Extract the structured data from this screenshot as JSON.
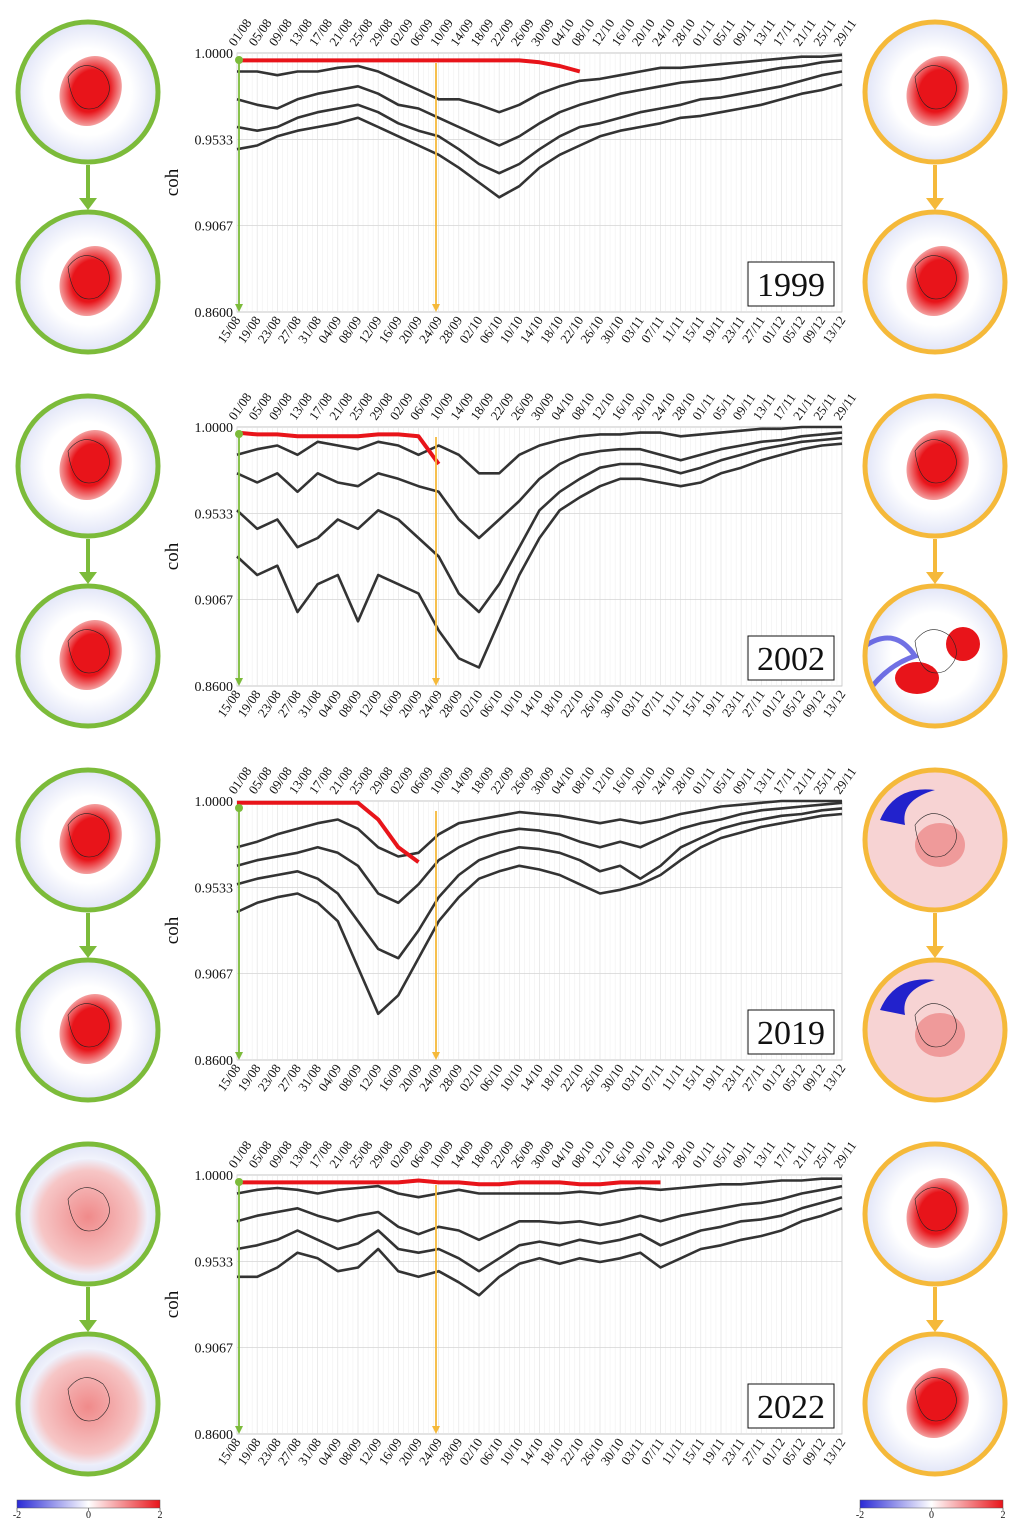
{
  "chart_data": [
    {
      "type": "line",
      "label": "1999",
      "ylabel": "coh",
      "ylim": [
        0.86,
        1.0
      ],
      "yticks": [
        {
          "value": 0.86,
          "label": "0.8600"
        },
        {
          "value": 0.9067,
          "label": "0.9067"
        },
        {
          "value": 0.9533,
          "label": "0.9533"
        },
        {
          "value": 1.0,
          "label": "1.0000"
        }
      ],
      "grid": true,
      "x": [
        "15/08",
        "19/08",
        "23/08",
        "27/08",
        "31/08",
        "04/09",
        "08/09",
        "12/09",
        "16/09",
        "20/09",
        "24/09",
        "28/09",
        "02/10",
        "06/10",
        "10/10",
        "14/10",
        "18/10",
        "22/10",
        "26/10",
        "30/10",
        "03/11",
        "07/11",
        "11/11",
        "15/11",
        "19/11",
        "23/11",
        "27/11",
        "01/12",
        "05/12",
        "09/12",
        "13/12"
      ],
      "x_top": [
        "01/08",
        "05/08",
        "09/08",
        "13/08",
        "17/08",
        "21/08",
        "25/08",
        "29/08",
        "02/09",
        "06/09",
        "10/09",
        "14/09",
        "18/09",
        "22/09",
        "26/09",
        "30/09",
        "04/10",
        "08/10",
        "12/10",
        "16/10",
        "20/10",
        "24/10",
        "28/10",
        "01/11",
        "05/11",
        "09/11",
        "13/11",
        "17/11",
        "21/11",
        "25/11",
        "29/11"
      ],
      "series": [
        {
          "color": "#333333",
          "values": [
            0.99,
            0.99,
            0.988,
            0.99,
            0.99,
            0.992,
            0.993,
            0.99,
            0.985,
            0.98,
            0.975,
            0.975,
            0.972,
            0.968,
            0.972,
            0.978,
            0.982,
            0.985,
            0.986,
            0.988,
            0.99,
            0.992,
            0.992,
            0.993,
            0.994,
            0.995,
            0.996,
            0.997,
            0.998,
            0.998,
            0.999
          ]
        },
        {
          "color": "#333333",
          "values": [
            0.975,
            0.972,
            0.97,
            0.975,
            0.978,
            0.98,
            0.982,
            0.978,
            0.972,
            0.97,
            0.965,
            0.96,
            0.955,
            0.95,
            0.955,
            0.962,
            0.968,
            0.972,
            0.975,
            0.978,
            0.98,
            0.982,
            0.984,
            0.985,
            0.986,
            0.988,
            0.99,
            0.992,
            0.993,
            0.995,
            0.996
          ]
        },
        {
          "color": "#333333",
          "values": [
            0.96,
            0.958,
            0.96,
            0.965,
            0.968,
            0.97,
            0.972,
            0.968,
            0.962,
            0.958,
            0.955,
            0.948,
            0.94,
            0.935,
            0.94,
            0.948,
            0.955,
            0.96,
            0.962,
            0.965,
            0.968,
            0.97,
            0.972,
            0.975,
            0.976,
            0.978,
            0.98,
            0.982,
            0.985,
            0.988,
            0.99
          ]
        },
        {
          "color": "#333333",
          "values": [
            0.948,
            0.95,
            0.955,
            0.958,
            0.96,
            0.962,
            0.965,
            0.96,
            0.955,
            0.95,
            0.945,
            0.938,
            0.93,
            0.922,
            0.928,
            0.938,
            0.945,
            0.95,
            0.955,
            0.958,
            0.96,
            0.962,
            0.965,
            0.966,
            0.968,
            0.97,
            0.972,
            0.975,
            0.978,
            0.98,
            0.983
          ]
        },
        {
          "color": "#e8141a",
          "values": [
            0.996,
            0.996,
            0.996,
            0.996,
            0.996,
            0.996,
            0.996,
            0.996,
            0.996,
            0.996,
            0.996,
            0.996,
            0.996,
            0.996,
            0.996,
            0.995,
            0.993,
            0.99,
            null,
            null,
            null,
            null,
            null,
            null,
            null,
            null,
            null,
            null,
            null,
            null,
            null
          ]
        }
      ]
    },
    {
      "type": "line",
      "label": "2002",
      "ylabel": "coh",
      "ylim": [
        0.86,
        1.0
      ],
      "yticks": [
        {
          "value": 0.86,
          "label": "0.8600"
        },
        {
          "value": 0.9067,
          "label": "0.9067"
        },
        {
          "value": 0.9533,
          "label": "0.9533"
        },
        {
          "value": 1.0,
          "label": "1.0000"
        }
      ],
      "grid": true,
      "x": [
        "15/08",
        "19/08",
        "23/08",
        "27/08",
        "31/08",
        "04/09",
        "08/09",
        "12/09",
        "16/09",
        "20/09",
        "24/09",
        "28/09",
        "02/10",
        "06/10",
        "10/10",
        "14/10",
        "18/10",
        "22/10",
        "26/10",
        "30/10",
        "03/11",
        "07/11",
        "11/11",
        "15/11",
        "19/11",
        "23/11",
        "27/11",
        "01/12",
        "05/12",
        "09/12",
        "13/12"
      ],
      "x_top": [
        "01/08",
        "05/08",
        "09/08",
        "13/08",
        "17/08",
        "21/08",
        "25/08",
        "29/08",
        "02/09",
        "06/09",
        "10/09",
        "14/09",
        "18/09",
        "22/09",
        "26/09",
        "30/09",
        "04/10",
        "08/10",
        "12/10",
        "16/10",
        "20/10",
        "24/10",
        "28/10",
        "01/11",
        "05/11",
        "09/11",
        "13/11",
        "17/11",
        "21/11",
        "25/11",
        "29/11"
      ],
      "series": [
        {
          "color": "#333333",
          "values": [
            0.985,
            0.988,
            0.99,
            0.985,
            0.992,
            0.99,
            0.988,
            0.992,
            0.99,
            0.985,
            0.99,
            0.985,
            0.975,
            0.975,
            0.985,
            0.99,
            0.993,
            0.995,
            0.996,
            0.996,
            0.997,
            0.997,
            0.995,
            0.996,
            0.997,
            0.998,
            0.999,
            0.999,
            1.0,
            1.0,
            1.0
          ]
        },
        {
          "color": "#333333",
          "values": [
            0.975,
            0.97,
            0.975,
            0.965,
            0.975,
            0.97,
            0.968,
            0.975,
            0.972,
            0.968,
            0.965,
            0.95,
            0.94,
            0.95,
            0.96,
            0.972,
            0.98,
            0.985,
            0.987,
            0.988,
            0.988,
            0.985,
            0.982,
            0.985,
            0.988,
            0.99,
            0.992,
            0.993,
            0.995,
            0.996,
            0.997
          ]
        },
        {
          "color": "#333333",
          "values": [
            0.955,
            0.945,
            0.95,
            0.935,
            0.94,
            0.95,
            0.945,
            0.955,
            0.95,
            0.94,
            0.93,
            0.91,
            0.9,
            0.915,
            0.935,
            0.955,
            0.965,
            0.972,
            0.978,
            0.98,
            0.98,
            0.978,
            0.975,
            0.978,
            0.982,
            0.985,
            0.988,
            0.99,
            0.992,
            0.993,
            0.994
          ]
        },
        {
          "color": "#333333",
          "values": [
            0.93,
            0.92,
            0.925,
            0.9,
            0.915,
            0.92,
            0.895,
            0.92,
            0.915,
            0.91,
            0.89,
            0.875,
            0.87,
            0.895,
            0.92,
            0.94,
            0.955,
            0.962,
            0.968,
            0.972,
            0.972,
            0.97,
            0.968,
            0.97,
            0.975,
            0.978,
            0.982,
            0.985,
            0.988,
            0.99,
            0.991
          ]
        },
        {
          "color": "#e8141a",
          "values": [
            0.997,
            0.996,
            0.996,
            0.995,
            0.995,
            0.995,
            0.995,
            0.996,
            0.996,
            0.995,
            0.98,
            null,
            null,
            null,
            null,
            null,
            null,
            null,
            null,
            null,
            null,
            null,
            null,
            null,
            null,
            null,
            null,
            null,
            null,
            null,
            null
          ]
        }
      ]
    },
    {
      "type": "line",
      "label": "2019",
      "ylabel": "coh",
      "ylim": [
        0.86,
        1.0
      ],
      "yticks": [
        {
          "value": 0.86,
          "label": "0.8600"
        },
        {
          "value": 0.9067,
          "label": "0.9067"
        },
        {
          "value": 0.9533,
          "label": "0.9533"
        },
        {
          "value": 1.0,
          "label": "1.0000"
        }
      ],
      "grid": true,
      "x": [
        "15/08",
        "19/08",
        "23/08",
        "27/08",
        "31/08",
        "04/09",
        "08/09",
        "12/09",
        "16/09",
        "20/09",
        "24/09",
        "28/09",
        "02/10",
        "06/10",
        "10/10",
        "14/10",
        "18/10",
        "22/10",
        "26/10",
        "30/10",
        "03/11",
        "07/11",
        "11/11",
        "15/11",
        "19/11",
        "23/11",
        "27/11",
        "01/12",
        "05/12",
        "09/12",
        "13/12"
      ],
      "x_top": [
        "01/08",
        "05/08",
        "09/08",
        "13/08",
        "17/08",
        "21/08",
        "25/08",
        "29/08",
        "02/09",
        "06/09",
        "10/09",
        "14/09",
        "18/09",
        "22/09",
        "26/09",
        "30/09",
        "04/10",
        "08/10",
        "12/10",
        "16/10",
        "20/10",
        "24/10",
        "28/10",
        "01/11",
        "05/11",
        "09/11",
        "13/11",
        "17/11",
        "21/11",
        "25/11",
        "29/11"
      ],
      "series": [
        {
          "color": "#333333",
          "values": [
            0.975,
            0.978,
            0.982,
            0.985,
            0.988,
            0.99,
            0.985,
            0.975,
            0.97,
            0.972,
            0.982,
            0.988,
            0.99,
            0.992,
            0.994,
            0.993,
            0.992,
            0.99,
            0.988,
            0.99,
            0.988,
            0.99,
            0.993,
            0.995,
            0.997,
            0.998,
            0.999,
            1.0,
            1.0,
            1.0,
            1.0
          ]
        },
        {
          "color": "#333333",
          "values": [
            0.965,
            0.968,
            0.97,
            0.972,
            0.975,
            0.972,
            0.965,
            0.95,
            0.945,
            0.955,
            0.968,
            0.975,
            0.98,
            0.983,
            0.985,
            0.984,
            0.982,
            0.978,
            0.975,
            0.978,
            0.975,
            0.98,
            0.985,
            0.988,
            0.99,
            0.993,
            0.995,
            0.996,
            0.997,
            0.998,
            0.999
          ]
        },
        {
          "color": "#333333",
          "values": [
            0.955,
            0.958,
            0.96,
            0.962,
            0.958,
            0.95,
            0.935,
            0.92,
            0.915,
            0.93,
            0.948,
            0.96,
            0.968,
            0.972,
            0.975,
            0.974,
            0.972,
            0.968,
            0.962,
            0.965,
            0.958,
            0.965,
            0.975,
            0.98,
            0.985,
            0.988,
            0.99,
            0.992,
            0.993,
            0.995,
            0.996
          ]
        },
        {
          "color": "#333333",
          "values": [
            0.94,
            0.945,
            0.948,
            0.95,
            0.945,
            0.935,
            0.91,
            0.885,
            0.895,
            0.915,
            0.935,
            0.948,
            0.958,
            0.962,
            0.965,
            0.963,
            0.96,
            0.955,
            0.95,
            0.952,
            0.955,
            0.96,
            0.968,
            0.975,
            0.98,
            0.983,
            0.986,
            0.988,
            0.99,
            0.992,
            0.993
          ]
        },
        {
          "color": "#e8141a",
          "values": [
            0.999,
            0.999,
            0.999,
            0.999,
            0.999,
            0.999,
            0.999,
            0.99,
            0.975,
            0.967,
            null,
            null,
            null,
            null,
            null,
            null,
            null,
            null,
            null,
            null,
            null,
            null,
            null,
            null,
            null,
            null,
            null,
            null,
            null,
            null,
            null
          ]
        }
      ]
    },
    {
      "type": "line",
      "label": "2022",
      "ylabel": "coh",
      "ylim": [
        0.86,
        1.0
      ],
      "yticks": [
        {
          "value": 0.86,
          "label": "0.8600"
        },
        {
          "value": 0.9067,
          "label": "0.9067"
        },
        {
          "value": 0.9533,
          "label": "0.9533"
        },
        {
          "value": 1.0,
          "label": "1.0000"
        }
      ],
      "grid": true,
      "x": [
        "15/08",
        "19/08",
        "23/08",
        "27/08",
        "31/08",
        "04/09",
        "08/09",
        "12/09",
        "16/09",
        "20/09",
        "24/09",
        "28/09",
        "02/10",
        "06/10",
        "10/10",
        "14/10",
        "18/10",
        "22/10",
        "26/10",
        "30/10",
        "03/11",
        "07/11",
        "11/11",
        "15/11",
        "19/11",
        "23/11",
        "27/11",
        "01/12",
        "05/12",
        "09/12",
        "13/12"
      ],
      "x_top": [
        "01/08",
        "05/08",
        "09/08",
        "13/08",
        "17/08",
        "21/08",
        "25/08",
        "29/08",
        "02/09",
        "06/09",
        "10/09",
        "14/09",
        "18/09",
        "22/09",
        "26/09",
        "30/09",
        "04/10",
        "08/10",
        "12/10",
        "16/10",
        "20/10",
        "24/10",
        "28/10",
        "01/11",
        "05/11",
        "09/11",
        "13/11",
        "17/11",
        "21/11",
        "25/11",
        "29/11"
      ],
      "series": [
        {
          "color": "#333333",
          "values": [
            0.99,
            0.992,
            0.993,
            0.992,
            0.99,
            0.992,
            0.993,
            0.994,
            0.99,
            0.988,
            0.99,
            0.992,
            0.99,
            0.99,
            0.99,
            0.99,
            0.99,
            0.991,
            0.99,
            0.992,
            0.993,
            0.992,
            0.993,
            0.994,
            0.995,
            0.995,
            0.996,
            0.997,
            0.997,
            0.998,
            0.998
          ]
        },
        {
          "color": "#333333",
          "values": [
            0.975,
            0.978,
            0.98,
            0.982,
            0.978,
            0.975,
            0.978,
            0.98,
            0.972,
            0.968,
            0.972,
            0.97,
            0.965,
            0.97,
            0.975,
            0.975,
            0.974,
            0.975,
            0.973,
            0.975,
            0.978,
            0.975,
            0.978,
            0.98,
            0.982,
            0.984,
            0.985,
            0.987,
            0.99,
            0.992,
            0.994
          ]
        },
        {
          "color": "#333333",
          "values": [
            0.96,
            0.962,
            0.965,
            0.97,
            0.965,
            0.96,
            0.963,
            0.97,
            0.96,
            0.958,
            0.96,
            0.955,
            0.948,
            0.955,
            0.962,
            0.964,
            0.962,
            0.965,
            0.963,
            0.965,
            0.968,
            0.962,
            0.966,
            0.97,
            0.972,
            0.975,
            0.976,
            0.978,
            0.982,
            0.985,
            0.988
          ]
        },
        {
          "color": "#333333",
          "values": [
            0.945,
            0.945,
            0.95,
            0.958,
            0.955,
            0.948,
            0.95,
            0.96,
            0.948,
            0.945,
            0.948,
            0.942,
            0.935,
            0.945,
            0.952,
            0.955,
            0.952,
            0.955,
            0.953,
            0.955,
            0.958,
            0.95,
            0.955,
            0.96,
            0.962,
            0.965,
            0.967,
            0.97,
            0.975,
            0.978,
            0.982
          ]
        },
        {
          "color": "#e8141a",
          "values": [
            0.996,
            0.996,
            0.996,
            0.996,
            0.996,
            0.996,
            0.996,
            0.996,
            0.996,
            0.997,
            0.996,
            0.996,
            0.995,
            0.995,
            0.996,
            0.996,
            0.996,
            0.995,
            0.995,
            0.996,
            0.996,
            0.996,
            null,
            null,
            null,
            null,
            null,
            null,
            null,
            null,
            null
          ]
        }
      ]
    }
  ],
  "colorbar": {
    "clim": [
      -2,
      2
    ],
    "ticks": [
      -2,
      0,
      2
    ],
    "colors": [
      "#2a2ad6",
      "#ffffff",
      "#e8141a"
    ]
  }
}
